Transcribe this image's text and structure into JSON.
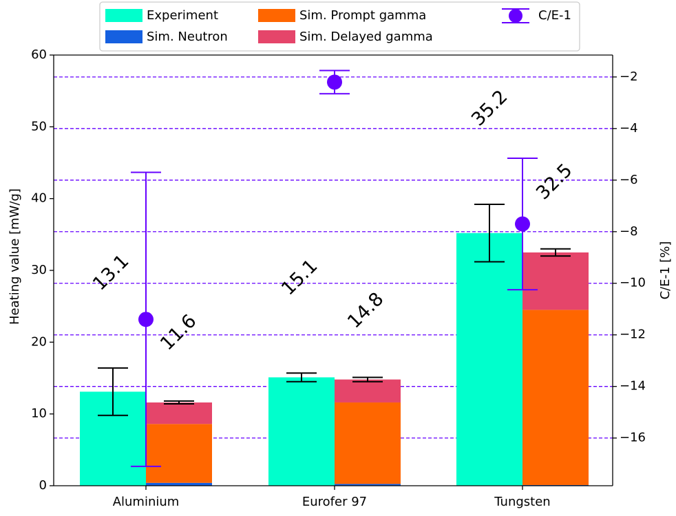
{
  "chart_data": {
    "type": "bar",
    "title": "",
    "categories": [
      "Aluminium",
      "Eurofer 97",
      "Tungsten"
    ],
    "ylabel": "Heating value [mW/g]",
    "ylim": [
      0,
      60
    ],
    "yticks": [
      "0",
      "10",
      "20",
      "30",
      "40",
      "50",
      "60"
    ],
    "y2label": "C/E-1 [%]",
    "y2lim": [
      -17.85,
      -1.15
    ],
    "y2ticks": [
      "−16",
      "−14",
      "−12",
      "−10",
      "−8",
      "−6",
      "−4",
      "−2"
    ],
    "y2tick_values": [
      -16,
      -14,
      -12,
      -10,
      -8,
      -6,
      -4,
      -2
    ],
    "grid": "dashed horizontal lines at secondary axis ticks",
    "legend_position": "top-center",
    "series": [
      {
        "name": "Experiment",
        "color": "#00FFCC",
        "values": [
          13.1,
          15.1,
          35.2
        ],
        "err": [
          3.3,
          0.6,
          4.0
        ],
        "labels": [
          "13.1",
          "15.1",
          "35.2"
        ]
      },
      {
        "name": "Sim. Neutron",
        "color": "#1560E0",
        "values": [
          0.4,
          0.25,
          0.1
        ]
      },
      {
        "name": "Sim. Prompt gamma",
        "color": "#FF6600",
        "values": [
          8.2,
          11.35,
          24.4
        ]
      },
      {
        "name": "Sim. Delayed gamma",
        "color": "#E5456A",
        "values": [
          3.0,
          3.2,
          8.0
        ],
        "err": [
          0.2,
          0.3,
          0.5
        ],
        "total_labels": [
          "11.6",
          "14.8",
          "32.5"
        ]
      },
      {
        "name": "C/E-1",
        "color": "#6600FF",
        "values": [
          -11.4,
          -2.2,
          -7.7
        ],
        "err": [
          5.7,
          0.45,
          2.55
        ]
      }
    ]
  }
}
